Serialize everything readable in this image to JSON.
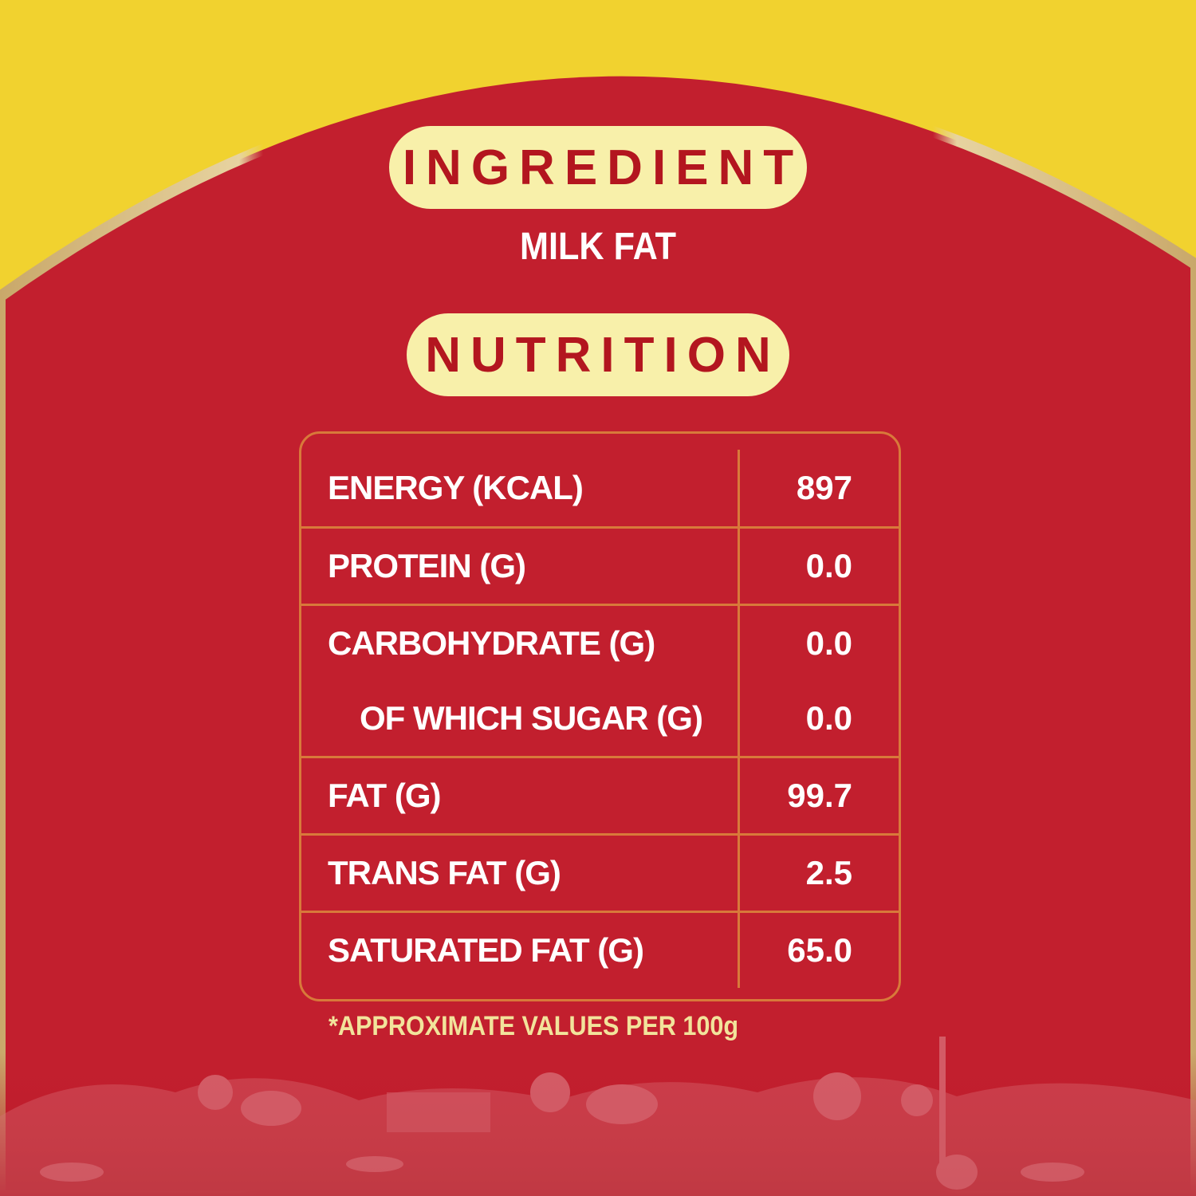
{
  "ingredient": {
    "heading": "INGREDIENT",
    "text": "MILK FAT"
  },
  "nutrition": {
    "heading": "NUTRITION",
    "table": {
      "groups": [
        [
          [
            "ENERGY (KCAL)",
            "897"
          ]
        ],
        [
          [
            "PROTEIN (G)",
            "0.0"
          ]
        ],
        [
          [
            "CARBOHYDRATE (G)",
            "0.0"
          ],
          [
            "OF WHICH SUGAR (G)",
            "0.0"
          ]
        ],
        [
          [
            "FAT (G)",
            "99.7"
          ]
        ],
        [
          [
            "TRANS FAT (G)",
            "2.5"
          ]
        ],
        [
          [
            "SATURATED FAT (G)",
            "65.0"
          ]
        ]
      ]
    },
    "footnote": "*APPROXIMATE VALUES PER 100g"
  }
}
